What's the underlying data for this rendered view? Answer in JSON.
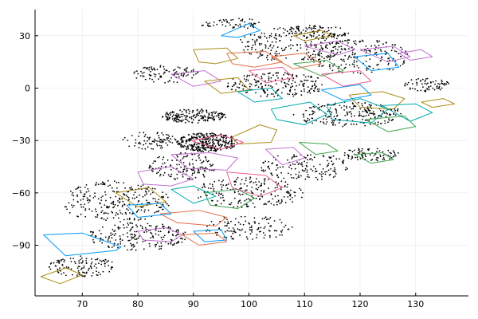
{
  "chart_data": {
    "type": "scatter",
    "title": "",
    "xlabel": "",
    "ylabel": "",
    "xlim": [
      61.5,
      139.5
    ],
    "ylim": [
      -119,
      45
    ],
    "grid": true,
    "legend": "none",
    "x_ticks": [
      70,
      80,
      90,
      100,
      110,
      120,
      130
    ],
    "y_ticks": [
      30,
      0,
      -30,
      -60,
      -90
    ],
    "x_tick_labels": [
      "70",
      "80",
      "90",
      "100",
      "110",
      "120",
      "130"
    ],
    "y_tick_labels": [
      "30",
      "0",
      "−30",
      "−60",
      "−90"
    ],
    "point_color": "#000000",
    "palette": [
      "#009AFA",
      "#E36F47",
      "#3EA44E",
      "#C371D2",
      "#AC8D18",
      "#00A9AD",
      "#ED5E93"
    ],
    "scatter_clusters": [
      {
        "x": 92.5,
        "y": -31,
        "rx": 5.5,
        "ry": 5.5,
        "n": 340
      },
      {
        "x": 90,
        "y": -16,
        "rx": 6,
        "ry": 4,
        "n": 180
      },
      {
        "x": 76,
        "y": -65,
        "rx": 10,
        "ry": 12,
        "n": 260
      },
      {
        "x": 80,
        "y": -85,
        "rx": 9,
        "ry": 8,
        "n": 200
      },
      {
        "x": 70,
        "y": -102,
        "rx": 6,
        "ry": 6,
        "n": 120
      },
      {
        "x": 88,
        "y": -45,
        "rx": 6,
        "ry": 8,
        "n": 140
      },
      {
        "x": 108,
        "y": 25,
        "rx": 10,
        "ry": 10,
        "n": 220
      },
      {
        "x": 120,
        "y": 18,
        "rx": 9,
        "ry": 10,
        "n": 200
      },
      {
        "x": 105,
        "y": 2,
        "rx": 9,
        "ry": 7,
        "n": 200
      },
      {
        "x": 118,
        "y": -15,
        "rx": 10,
        "ry": 7,
        "n": 220
      },
      {
        "x": 100,
        "y": -60,
        "rx": 10,
        "ry": 9,
        "n": 200
      },
      {
        "x": 110,
        "y": -45,
        "rx": 8,
        "ry": 8,
        "n": 150
      },
      {
        "x": 122,
        "y": -38,
        "rx": 5,
        "ry": 4,
        "n": 80
      },
      {
        "x": 132,
        "y": 2,
        "rx": 4,
        "ry": 4,
        "n": 70
      },
      {
        "x": 100,
        "y": -80,
        "rx": 8,
        "ry": 7,
        "n": 120
      },
      {
        "x": 85,
        "y": 8,
        "rx": 6,
        "ry": 5,
        "n": 100
      },
      {
        "x": 97,
        "y": 37,
        "rx": 6,
        "ry": 3,
        "n": 60
      },
      {
        "x": 112,
        "y": 32,
        "rx": 6,
        "ry": 4,
        "n": 80
      },
      {
        "x": 82,
        "y": -30,
        "rx": 5,
        "ry": 5,
        "n": 80
      }
    ],
    "series": [
      {
        "color": "#009AFA",
        "x": [
          63,
          70,
          77,
          76,
          67,
          63
        ],
        "y": [
          -84,
          -83,
          -91,
          -93,
          -96,
          -84
        ]
      },
      {
        "color": "#AC8D18",
        "x": [
          62.5,
          67,
          70,
          66,
          62.5
        ],
        "y": [
          -108,
          -103,
          -107,
          -112,
          -108
        ]
      },
      {
        "color": "#C371D2",
        "x": [
          80,
          85,
          88,
          86,
          81,
          80
        ],
        "y": [
          -82,
          -80,
          -84,
          -88,
          -87,
          -82
        ]
      },
      {
        "color": "#E36F47",
        "x": [
          84,
          91,
          96,
          94,
          87,
          84
        ],
        "y": [
          -72,
          -70,
          -74,
          -79,
          -77,
          -72
        ]
      },
      {
        "color": "#009AFA",
        "x": [
          90,
          95,
          96,
          92,
          90
        ],
        "y": [
          -82,
          -81,
          -87,
          -88,
          -82
        ]
      },
      {
        "color": "#3EA44E",
        "x": [
          92,
          98,
          101,
          98,
          93,
          92
        ],
        "y": [
          -60,
          -58,
          -63,
          -69,
          -67,
          -60
        ]
      },
      {
        "color": "#ED5E93",
        "x": [
          96,
          103,
          106,
          102,
          97,
          96
        ],
        "y": [
          -48,
          -50,
          -57,
          -62,
          -57,
          -48
        ]
      },
      {
        "color": "#C371D2",
        "x": [
          80,
          86,
          90,
          86,
          81,
          80
        ],
        "y": [
          -48,
          -45,
          -52,
          -56,
          -55,
          -48
        ]
      },
      {
        "color": "#00A9AD",
        "x": [
          86,
          90,
          94,
          90,
          86
        ],
        "y": [
          -58,
          -56,
          -62,
          -66,
          -58
        ]
      },
      {
        "color": "#AC8D18",
        "x": [
          76,
          82,
          85,
          80,
          76
        ],
        "y": [
          -60,
          -57,
          -65,
          -68,
          -60
        ]
      },
      {
        "color": "#009AFA",
        "x": [
          78,
          84,
          86,
          80,
          78
        ],
        "y": [
          -67,
          -66,
          -72,
          -74,
          -67
        ]
      },
      {
        "color": "#C371D2",
        "x": [
          86,
          93,
          98,
          96,
          89,
          86
        ],
        "y": [
          -38,
          -37,
          -40,
          -47,
          -46,
          -38
        ]
      },
      {
        "color": "#AC8D18",
        "x": [
          97,
          102,
          105,
          104,
          98,
          97
        ],
        "y": [
          -28,
          -21,
          -24,
          -31,
          -32,
          -28
        ]
      },
      {
        "color": "#C371D2",
        "x": [
          103,
          108,
          110,
          106,
          103
        ],
        "y": [
          -35,
          -34,
          -40,
          -44,
          -35
        ]
      },
      {
        "color": "#ED5E93",
        "x": [
          89.5,
          95,
          99,
          95,
          89.5
        ],
        "y": [
          -30,
          -27,
          -31,
          -35,
          -30
        ]
      },
      {
        "color": "#3EA44E",
        "x": [
          109,
          114,
          116,
          112,
          109
        ],
        "y": [
          -31,
          -32,
          -36,
          -38,
          -31
        ]
      },
      {
        "color": "#3EA44E",
        "x": [
          119,
          124,
          126,
          122,
          119
        ],
        "y": [
          -38,
          -37,
          -41,
          -43,
          -38
        ]
      },
      {
        "color": "#00A9AD",
        "x": [
          104,
          111,
          114,
          110,
          105,
          104
        ],
        "y": [
          -12,
          -8,
          -15,
          -21,
          -18,
          -12
        ]
      },
      {
        "color": "#00A9AD",
        "x": [
          114,
          120,
          125,
          122,
          115,
          114
        ],
        "y": [
          -10,
          -6,
          -12,
          -20,
          -18,
          -10
        ]
      },
      {
        "color": "#AC8D18",
        "x": [
          118,
          124,
          128,
          126,
          120,
          118
        ],
        "y": [
          -4,
          -2,
          -6,
          -12,
          -11,
          -4
        ]
      },
      {
        "color": "#00A9AD",
        "x": [
          124,
          130,
          133,
          129,
          124
        ],
        "y": [
          -10,
          -9,
          -14,
          -19,
          -10
        ]
      },
      {
        "color": "#AC8D18",
        "x": [
          131,
          135,
          137,
          133,
          131
        ],
        "y": [
          -8,
          -6,
          -9,
          -11,
          -8
        ]
      },
      {
        "color": "#009AFA",
        "x": [
          113,
          120,
          122,
          117,
          113
        ],
        "y": [
          -1,
          2,
          -4,
          -7,
          -1
        ]
      },
      {
        "color": "#009AFA",
        "x": [
          119,
          125,
          127,
          122,
          119
        ],
        "y": [
          18,
          20,
          12,
          10,
          18
        ]
      },
      {
        "color": "#3EA44E",
        "x": [
          108,
          114,
          117,
          113,
          108
        ],
        "y": [
          14,
          16,
          10,
          7,
          14
        ]
      },
      {
        "color": "#C371D2",
        "x": [
          110,
          116,
          119,
          116,
          110
        ],
        "y": [
          24,
          27,
          22,
          19,
          24
        ]
      },
      {
        "color": "#C371D2",
        "x": [
          120,
          126,
          129,
          125,
          120
        ],
        "y": [
          22,
          24,
          18,
          15,
          22
        ]
      },
      {
        "color": "#AC8D18",
        "x": [
          108,
          113,
          115,
          110,
          108
        ],
        "y": [
          30,
          33,
          30,
          27,
          30
        ]
      },
      {
        "color": "#009AFA",
        "x": [
          95,
          100,
          102,
          98,
          95
        ],
        "y": [
          30,
          37,
          33,
          29,
          30
        ]
      },
      {
        "color": "#AC8D18",
        "x": [
          90,
          96,
          98,
          94,
          91,
          90
        ],
        "y": [
          22,
          23,
          17,
          14,
          15,
          22
        ]
      },
      {
        "color": "#E36F47",
        "x": [
          96,
          103,
          106,
          101,
          97,
          96
        ],
        "y": [
          20,
          21,
          15,
          12,
          14,
          20
        ]
      },
      {
        "color": "#ED5E93",
        "x": [
          100,
          106,
          108,
          103,
          100
        ],
        "y": [
          10,
          12,
          6,
          3,
          10
        ]
      },
      {
        "color": "#C371D2",
        "x": [
          86,
          92,
          95,
          90,
          86
        ],
        "y": [
          8,
          10,
          4,
          1,
          8
        ]
      },
      {
        "color": "#AC8D18",
        "x": [
          92,
          98,
          100,
          95,
          92
        ],
        "y": [
          4,
          6,
          -1,
          -3,
          4
        ]
      },
      {
        "color": "#00A9AD",
        "x": [
          98,
          104,
          106,
          101,
          98
        ],
        "y": [
          -2,
          0,
          -6,
          -8,
          -2
        ]
      },
      {
        "color": "#E36F47",
        "x": [
          104,
          110,
          113,
          108,
          104
        ],
        "y": [
          18,
          20,
          14,
          11,
          18
        ]
      },
      {
        "color": "#ED5E93",
        "x": [
          113,
          120,
          122,
          117,
          113
        ],
        "y": [
          8,
          10,
          4,
          1,
          8
        ]
      },
      {
        "color": "#C371D2",
        "x": [
          127,
          131,
          133,
          129,
          127
        ],
        "y": [
          20,
          22,
          18,
          16,
          20
        ]
      },
      {
        "color": "#3EA44E",
        "x": [
          121,
          128,
          130,
          125,
          121
        ],
        "y": [
          -18,
          -16,
          -22,
          -25,
          -18
        ]
      },
      {
        "color": "#E36F47",
        "x": [
          88,
          94,
          96,
          91,
          88
        ],
        "y": [
          -84,
          -83,
          -88,
          -90,
          -84
        ]
      }
    ]
  }
}
